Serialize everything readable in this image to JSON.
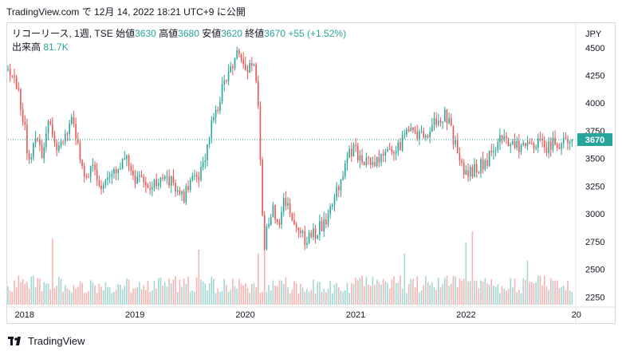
{
  "header": {
    "text": "TradingView.com で 12月 14, 2022 18:21 UTC+9 に公開"
  },
  "legend": {
    "symbol": "リコーリース, 1週, TSE",
    "open_label": "始値",
    "open": "3630",
    "high_label": "高値",
    "high": "3680",
    "low_label": "安値",
    "low": "3620",
    "close_label": "終値",
    "close": "3670",
    "change": "+55 (+1.52%)",
    "volume_label": "出来高",
    "volume": "81.7K"
  },
  "footer": {
    "brand": "TradingView",
    "logo_icon": "tradingview-logo-icon"
  },
  "colors": {
    "up": "#26a69a",
    "down": "#ef5350",
    "vol_up": "#a3d7d2",
    "vol_down": "#f6b3b1",
    "last_tag": "#26a69a"
  },
  "chart_data": {
    "type": "candlestick",
    "currency_label": "JPY",
    "last_price": 3670,
    "last_price_label": "3670",
    "y_ticks": [
      2250,
      2500,
      2750,
      3000,
      3250,
      3500,
      3750,
      4000,
      4250,
      4500
    ],
    "y_tick_labels": [
      "2250",
      "2500",
      "2750",
      "3000",
      "3250",
      "3500",
      "3750",
      "4000",
      "4250",
      "4500"
    ],
    "ylim": [
      2180,
      4700
    ],
    "x_tick_labels": [
      "2018",
      "2019",
      "2020",
      "2021",
      "2022",
      "20"
    ],
    "x_range": [
      2017.85,
      2022.98
    ],
    "grid": false,
    "price_path_keypoints": [
      [
        2017.85,
        4300
      ],
      [
        2017.93,
        4150
      ],
      [
        2017.98,
        3920
      ],
      [
        2018.04,
        3480
      ],
      [
        2018.1,
        3650
      ],
      [
        2018.16,
        3550
      ],
      [
        2018.22,
        3800
      ],
      [
        2018.3,
        3550
      ],
      [
        2018.38,
        3700
      ],
      [
        2018.44,
        3850
      ],
      [
        2018.5,
        3550
      ],
      [
        2018.56,
        3300
      ],
      [
        2018.62,
        3450
      ],
      [
        2018.7,
        3250
      ],
      [
        2018.78,
        3350
      ],
      [
        2018.86,
        3400
      ],
      [
        2018.92,
        3550
      ],
      [
        2018.98,
        3300
      ],
      [
        2019.05,
        3350
      ],
      [
        2019.12,
        3200
      ],
      [
        2019.2,
        3300
      ],
      [
        2019.28,
        3350
      ],
      [
        2019.36,
        3250
      ],
      [
        2019.44,
        3150
      ],
      [
        2019.52,
        3300
      ],
      [
        2019.58,
        3300
      ],
      [
        2019.64,
        3520
      ],
      [
        2019.7,
        3850
      ],
      [
        2019.76,
        4000
      ],
      [
        2019.8,
        4150
      ],
      [
        2019.86,
        4250
      ],
      [
        2019.92,
        4450
      ],
      [
        2019.96,
        4400
      ],
      [
        2020.0,
        4300
      ],
      [
        2020.08,
        4380
      ],
      [
        2020.12,
        3900
      ],
      [
        2020.14,
        3350
      ],
      [
        2020.17,
        2600
      ],
      [
        2020.2,
        2900
      ],
      [
        2020.26,
        3050
      ],
      [
        2020.3,
        2850
      ],
      [
        2020.36,
        3150
      ],
      [
        2020.42,
        3000
      ],
      [
        2020.48,
        2850
      ],
      [
        2020.55,
        2750
      ],
      [
        2020.62,
        2820
      ],
      [
        2020.7,
        2900
      ],
      [
        2020.78,
        3050
      ],
      [
        2020.86,
        3300
      ],
      [
        2020.92,
        3500
      ],
      [
        2020.98,
        3600
      ],
      [
        2021.04,
        3500
      ],
      [
        2021.12,
        3450
      ],
      [
        2021.22,
        3500
      ],
      [
        2021.32,
        3550
      ],
      [
        2021.42,
        3650
      ],
      [
        2021.5,
        3800
      ],
      [
        2021.58,
        3700
      ],
      [
        2021.66,
        3750
      ],
      [
        2021.74,
        3850
      ],
      [
        2021.82,
        3900
      ],
      [
        2021.88,
        3700
      ],
      [
        2021.94,
        3500
      ],
      [
        2022.0,
        3350
      ],
      [
        2022.08,
        3400
      ],
      [
        2022.16,
        3450
      ],
      [
        2022.24,
        3550
      ],
      [
        2022.32,
        3700
      ],
      [
        2022.4,
        3650
      ],
      [
        2022.48,
        3600
      ],
      [
        2022.56,
        3620
      ],
      [
        2022.64,
        3650
      ],
      [
        2022.72,
        3600
      ],
      [
        2022.8,
        3650
      ],
      [
        2022.88,
        3640
      ],
      [
        2022.95,
        3670
      ]
    ],
    "volume_spikes": [
      [
        2018.25,
        0.9
      ],
      [
        2019.58,
        0.75
      ],
      [
        2020.12,
        0.7
      ],
      [
        2020.17,
        1.0
      ],
      [
        2021.45,
        0.7
      ],
      [
        2022.0,
        0.85
      ],
      [
        2022.06,
        1.0
      ],
      [
        2022.55,
        0.6
      ]
    ],
    "volume_max": 110000
  }
}
